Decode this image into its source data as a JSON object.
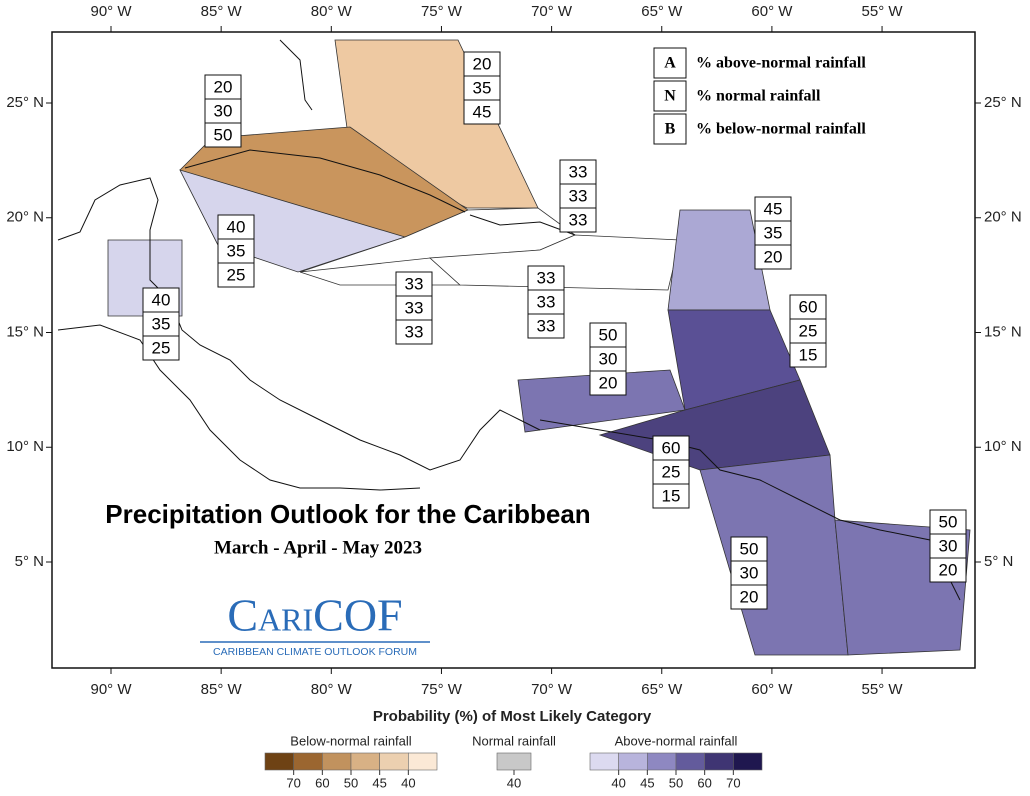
{
  "map": {
    "title": "Precipitation Outlook for the Caribbean",
    "subtitle": "March - April - May 2023",
    "logo": {
      "name": "CariCOF",
      "tagline": "CARIBBEAN CLIMATE OUTLOOK FORUM"
    },
    "lon_ticks": [
      {
        "value": -90,
        "label": "90° W"
      },
      {
        "value": -85,
        "label": "85° W"
      },
      {
        "value": -80,
        "label": "80° W"
      },
      {
        "value": -75,
        "label": "75° W"
      },
      {
        "value": -70,
        "label": "70° W"
      },
      {
        "value": -65,
        "label": "65° W"
      },
      {
        "value": -60,
        "label": "60° W"
      },
      {
        "value": -55,
        "label": "55° W"
      }
    ],
    "lat_ticks": [
      {
        "value": 25,
        "label": "25° N"
      },
      {
        "value": 20,
        "label": "20° N"
      },
      {
        "value": 15,
        "label": "15° N"
      },
      {
        "value": 10,
        "label": "10° N"
      },
      {
        "value": 5,
        "label": "5° N"
      }
    ],
    "key": [
      {
        "letter": "A",
        "text": "% above-normal rainfall"
      },
      {
        "letter": "N",
        "text": "% normal rainfall"
      },
      {
        "letter": "B",
        "text": "% below-normal rainfall"
      }
    ],
    "regions": [
      {
        "above": 20,
        "normal": 35,
        "below": 45,
        "color": "#eec9a2"
      },
      {
        "above": 20,
        "normal": 30,
        "below": 50,
        "color": "#c9955d"
      },
      {
        "above": 40,
        "normal": 35,
        "below": 25,
        "color": "#d6d5ec"
      },
      {
        "above": 40,
        "normal": 35,
        "below": 25,
        "color": "#d6d5ec"
      },
      {
        "above": 33,
        "normal": 33,
        "below": 33,
        "color": "#ffffff"
      },
      {
        "above": 33,
        "normal": 33,
        "below": 33,
        "color": "#ffffff"
      },
      {
        "above": 33,
        "normal": 33,
        "below": 33,
        "color": "#ffffff"
      },
      {
        "above": 45,
        "normal": 35,
        "below": 20,
        "color": "#aba8d4"
      },
      {
        "above": 60,
        "normal": 25,
        "below": 15,
        "color": "#5a5095"
      },
      {
        "above": 50,
        "normal": 30,
        "below": 20,
        "color": "#7c75b1"
      },
      {
        "above": 60,
        "normal": 25,
        "below": 15,
        "color": "#4c427e"
      },
      {
        "above": 50,
        "normal": 30,
        "below": 20,
        "color": "#7c75b1"
      },
      {
        "above": 50,
        "normal": 30,
        "below": 20,
        "color": "#7c75b1"
      }
    ],
    "legend": {
      "title": "Probability (%) of Most Likely Category",
      "groups": [
        {
          "label": "Below-normal rainfall",
          "colors": [
            "#6e4214",
            "#9b6630",
            "#c1925e",
            "#d8b185",
            "#ecd0b0",
            "#fbe9d6"
          ],
          "ticks": [
            70,
            60,
            50,
            45,
            40
          ]
        },
        {
          "label": "Normal rainfall",
          "colors": [
            "#c8c8c8"
          ],
          "ticks": [
            40
          ]
        },
        {
          "label": "Above-normal rainfall",
          "colors": [
            "#dcdaf0",
            "#b8b4dc",
            "#8e88c1",
            "#635b9c",
            "#3f3573",
            "#1f174f"
          ],
          "ticks": [
            40,
            45,
            50,
            60,
            70
          ]
        }
      ]
    }
  }
}
